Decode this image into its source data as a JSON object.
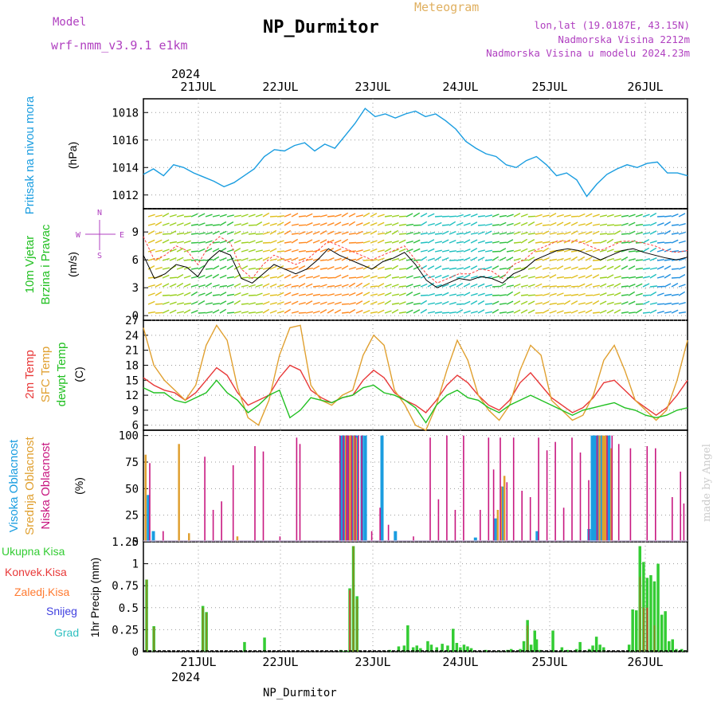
{
  "header": {
    "title": "NP_Durmitor",
    "meteogram": "Meteogram",
    "model_label": "Model",
    "model_name": "wrf-nmm_v3.9.1 e1km",
    "lonlat": "lon,lat (19.0187E, 43.15N)",
    "elevation": "Nadmorska Visina 2212m",
    "model_elevation": "Nadmorska Visina u modelu 2024.23m"
  },
  "footer": {
    "station": "NP_Durmitor",
    "made_by": "made by Angel"
  },
  "axis": {
    "year": "2024",
    "days": [
      "21JUL",
      "22JUL",
      "23JUL",
      "24JUL",
      "25JUL",
      "26JUL"
    ]
  },
  "colors": {
    "pressure": "#1a9de0",
    "wind_speed": "#000000",
    "gust": "#ff4040",
    "t2m": "#e83838",
    "sfc_temp": "#e0a030",
    "dewpt": "#22c022",
    "high_cloud": "#1a9de0",
    "mid_cloud": "#e0a030",
    "low_cloud": "#c81880",
    "total_precip": "#33cc33",
    "conv_precip": "#e83838",
    "frontal_precip": "#ff7a30",
    "snow": "#4040e0",
    "hail": "#30c0c0",
    "axis_label_blue": "#1a9de0",
    "axis_label_green": "#22c022"
  },
  "chart_data": [
    {
      "type": "line",
      "panel": "pressure",
      "ylabel_side": "Pritisak na nivou mora",
      "ylabel_unit": "(hPa)",
      "yticks": [
        1012,
        1014,
        1016,
        1018
      ],
      "ylim": [
        1011,
        1019
      ],
      "x_hours_from": "2024-07-20 12:00",
      "x_step_hours": 3,
      "series": [
        {
          "values": [
            1013.5,
            1013.9,
            1013.4,
            1014.2,
            1014.0,
            1013.6,
            1013.3,
            1013.0,
            1012.6,
            1012.9,
            1013.4,
            1013.9,
            1014.8,
            1015.3,
            1015.2,
            1015.6,
            1015.8,
            1015.2,
            1015.7,
            1015.4,
            1016.3,
            1017.2,
            1018.3,
            1017.7,
            1017.9,
            1017.6,
            1017.9,
            1018.1,
            1017.7,
            1017.9,
            1017.4,
            1016.8,
            1015.9,
            1015.4,
            1015.0,
            1014.8,
            1014.2,
            1014.0,
            1014.5,
            1014.8,
            1014.2,
            1013.4,
            1013.6,
            1013.1,
            1011.9,
            1012.8,
            1013.5,
            1013.9,
            1014.2,
            1014.0,
            1014.3,
            1014.4,
            1013.6,
            1013.6,
            1013.4
          ]
        }
      ]
    },
    {
      "type": "line",
      "panel": "wind",
      "ylabel_side": [
        "10m Vjetar",
        "Brzina i Pravac"
      ],
      "ylabel_unit": "(m/s)",
      "yticks": [
        0,
        3,
        6,
        9
      ],
      "ylim": [
        -0.5,
        11.5
      ],
      "compass": {
        "north": "N",
        "west": "W",
        "east": "E",
        "south": "S"
      },
      "x_hours_from": "2024-07-20 12:00",
      "x_step_hours": 3,
      "series": [
        {
          "name": "speed",
          "values": [
            6.5,
            4.0,
            4.5,
            5.5,
            5.2,
            4.2,
            6.0,
            7.0,
            6.5,
            4.0,
            3.5,
            4.5,
            5.5,
            5.0,
            4.5,
            5.0,
            6.0,
            7.2,
            6.5,
            6.0,
            5.5,
            5.0,
            5.8,
            6.2,
            6.8,
            5.5,
            3.8,
            3.0,
            3.5,
            4.0,
            3.8,
            4.2,
            4.0,
            3.5,
            4.5,
            5.0,
            6.0,
            6.5,
            7.0,
            7.2,
            7.0,
            6.5,
            6.0,
            6.5,
            7.0,
            7.2,
            6.8,
            6.5,
            6.2,
            6.0,
            6.3
          ]
        },
        {
          "name": "gust",
          "values": [
            8.5,
            6.0,
            6.5,
            7.5,
            7.0,
            5.5,
            7.5,
            8.5,
            7.8,
            5.0,
            4.0,
            5.5,
            6.5,
            6.0,
            5.5,
            6.0,
            7.0,
            8.0,
            7.5,
            7.0,
            6.5,
            6.0,
            6.5,
            7.0,
            7.5,
            6.0,
            4.5,
            3.5,
            4.0,
            4.5,
            4.5,
            5.0,
            4.8,
            4.0,
            5.5,
            6.0,
            7.0,
            7.5,
            8.0,
            8.0,
            8.0,
            7.5,
            7.0,
            7.5,
            8.0,
            8.0,
            7.8,
            7.5,
            7.0,
            6.8,
            7.0
          ]
        }
      ]
    },
    {
      "type": "line",
      "panel": "temperature",
      "ylabel_side": [
        "2m Temp",
        "SFC Temp",
        "dewpt Temp"
      ],
      "ylabel_unit": "(C)",
      "yticks": [
        6,
        9,
        12,
        15,
        18,
        21,
        24,
        27
      ],
      "ylim": [
        5,
        27
      ],
      "x_hours_from": "2024-07-20 12:00",
      "x_step_hours": 3,
      "series": [
        {
          "name": "2m Temp",
          "values": [
            15.5,
            14.0,
            13.0,
            12.5,
            11.0,
            12.5,
            15.0,
            17.5,
            16.0,
            12.5,
            10.0,
            11.0,
            12.0,
            15.5,
            18.0,
            17.0,
            13.0,
            11.5,
            10.5,
            11.5,
            12.0,
            15.0,
            17.0,
            15.5,
            12.5,
            11.0,
            10.0,
            8.5,
            11.0,
            14.0,
            16.0,
            14.5,
            12.0,
            10.0,
            9.0,
            11.0,
            14.5,
            16.5,
            14.0,
            11.5,
            10.0,
            8.5,
            9.5,
            11.5,
            14.5,
            15.0,
            13.0,
            11.0,
            9.5,
            8.0,
            9.5,
            12.0,
            15.0
          ]
        },
        {
          "name": "SFC Temp",
          "values": [
            25.5,
            18.0,
            15.0,
            13.0,
            11.0,
            14.0,
            22.0,
            26.0,
            23.0,
            13.5,
            7.5,
            6.0,
            11.0,
            20.0,
            25.5,
            26.0,
            14.0,
            11.0,
            10.0,
            12.0,
            13.0,
            20.0,
            24.0,
            22.0,
            13.0,
            10.0,
            6.0,
            5.0,
            10.0,
            17.0,
            23.0,
            19.0,
            12.0,
            9.0,
            7.0,
            10.0,
            17.0,
            22.0,
            20.0,
            11.0,
            9.0,
            7.0,
            8.0,
            12.0,
            19.0,
            22.0,
            17.0,
            11.0,
            9.0,
            7.0,
            9.0,
            15.0,
            23.0
          ]
        },
        {
          "name": "dewpt Temp",
          "values": [
            13.5,
            12.5,
            12.5,
            11.0,
            10.5,
            11.5,
            12.5,
            15.0,
            12.5,
            11.0,
            8.5,
            10.0,
            12.0,
            13.0,
            7.5,
            9.0,
            11.5,
            11.0,
            10.5,
            11.5,
            12.0,
            13.5,
            14.0,
            12.5,
            12.0,
            11.0,
            9.5,
            6.5,
            10.0,
            12.0,
            13.0,
            11.5,
            11.0,
            9.5,
            8.5,
            10.0,
            11.0,
            12.0,
            11.0,
            10.0,
            9.0,
            8.0,
            9.0,
            9.5,
            10.0,
            10.5,
            9.5,
            9.0,
            8.0,
            7.5,
            8.0,
            9.0,
            9.5
          ]
        }
      ]
    },
    {
      "type": "bar",
      "panel": "cloud",
      "ylabel_side": [
        "Visoka Oblacnost",
        "Srednja Oblacnost",
        "Niska Oblacnost"
      ],
      "ylabel_unit": "(%)",
      "yticks": [
        0,
        25,
        50,
        75,
        100
      ],
      "ylim": [
        0,
        105
      ],
      "x_hours_from": "2024-07-20 12:00",
      "x_step_hours": 1,
      "series": [
        {
          "name": "Visoka Oblacnost",
          "values_at": {
            "2": 44,
            "5": 10,
            "118": 100,
            "119": 100,
            "120": 100,
            "121": 100,
            "122": 100,
            "124": 100,
            "125": 100,
            "126": 100,
            "127": 100,
            "130": 100,
            "132": 100,
            "142": 100,
            "150": 10,
            "198": 4,
            "210": 22,
            "214": 52,
            "235": 10,
            "266": 12,
            "268": 100,
            "269": 100,
            "270": 100,
            "271": 100,
            "272": 100,
            "273": 100,
            "277": 100,
            "278": 100
          }
        },
        {
          "name": "Srednja Oblacnost",
          "values_at": {
            "0": 82,
            "20": 92,
            "26": 8,
            "55": 5,
            "120": 100,
            "122": 100,
            "123": 100,
            "125": 100,
            "126": 98,
            "211": 30,
            "213": 52,
            "215": 62,
            "272": 100,
            "274": 100,
            "275": 100,
            "276": 100,
            "279": 88
          }
        },
        {
          "name": "Niska Oblacnost",
          "values_at": {
            "2": 74,
            "10": 10,
            "35": 80,
            "40": 30,
            "45": 38,
            "52": 72,
            "65": 90,
            "70": 85,
            "80": 5,
            "90": 98,
            "92": 92,
            "116": 100,
            "118": 100,
            "120": 100,
            "121": 100,
            "123": 100,
            "125": 100,
            "127": 100,
            "129": 100,
            "135": 10,
            "140": 32,
            "145": 16,
            "160": 5,
            "170": 98,
            "175": 40,
            "180": 100,
            "185": 30,
            "190": 100,
            "200": 30,
            "205": 98,
            "208": 68,
            "212": 98,
            "216": 56,
            "220": 98,
            "225": 48,
            "230": 42,
            "235": 98,
            "240": 86,
            "245": 94,
            "250": 32,
            "255": 98,
            "260": 84,
            "265": 58,
            "270": 100,
            "276": 100,
            "279": 100,
            "283": 92,
            "290": 88,
            "300": 90,
            "305": 88,
            "315": 42,
            "320": 66,
            "322": 36
          }
        }
      ]
    },
    {
      "type": "bar",
      "panel": "precip",
      "ylabel_side": [
        "Ukupna Kisa",
        "Konvek.Kisa",
        "Zaledj.Kisa",
        "Snijeg",
        "Grad"
      ],
      "ylabel_unit": "1hr Precip (mm)",
      "yticks": [
        "0",
        "0.25",
        "0.5",
        "0.75",
        "1",
        "1.25"
      ],
      "ylim": [
        0,
        1.25
      ],
      "x_hours_from": "2024-07-20 12:00",
      "x_step_hours": 1,
      "series": [
        {
          "name": "Ukupna Kisa",
          "values_at": {
            "1": 0.82,
            "5": 0.29,
            "32": 0.52,
            "34": 0.45,
            "55": 0.11,
            "66": 0.16,
            "108": 0.02,
            "110": 0.01,
            "111": 0.01,
            "112": 0.01,
            "113": 0.72,
            "115": 1.2,
            "117": 0.63,
            "135": 0.02,
            "140": 0.06,
            "143": 0.07,
            "145": 0.3,
            "148": 0.05,
            "150": 0.07,
            "152": 0.04,
            "156": 0.12,
            "158": 0.08,
            "161": 0.05,
            "164": 0.09,
            "167": 0.07,
            "170": 0.26,
            "172": 0.1,
            "174": 0.05,
            "176": 0.08,
            "178": 0.06,
            "180": 0.04,
            "188": 0.02,
            "195": 0.01,
            "200": 0.02,
            "202": 0.03,
            "207": 0.03,
            "209": 0.12,
            "211": 0.36,
            "213": 0.08,
            "215": 0.24,
            "216": 0.14,
            "218": 0.02,
            "225": 0.24,
            "230": 0.05,
            "233": 0.02,
            "238": 0.03,
            "240": 0.11,
            "245": 0.03,
            "247": 0.07,
            "249": 0.17,
            "251": 0.08,
            "253": 0.05,
            "267": 0.08,
            "269": 0.48,
            "271": 0.47,
            "273": 1.2,
            "275": 1.02,
            "277": 0.84,
            "279": 0.87,
            "281": 0.8,
            "283": 1.0,
            "285": 0.42,
            "287": 0.46,
            "289": 0.12,
            "291": 0.14,
            "293": 0.03,
            "296": 0.03,
            "298": 0.01
          }
        },
        {
          "name": "Konvek.Kisa",
          "values_at": {
            "113": 0.7,
            "115": 0.25,
            "273": 0.6,
            "275": 0.5,
            "277": 0.5
          }
        },
        {
          "name": "Zaledj.Kisa",
          "values_at": {
            "1": 0.82,
            "5": 0.28,
            "32": 0.5,
            "34": 0.44,
            "115": 1.2,
            "117": 0.6,
            "211": 0.3,
            "273": 0.85,
            "275": 0.5,
            "281": 0.3
          }
        },
        {
          "name": "Snijeg",
          "values_at": {}
        },
        {
          "name": "Grad",
          "values_at": {}
        }
      ]
    }
  ]
}
